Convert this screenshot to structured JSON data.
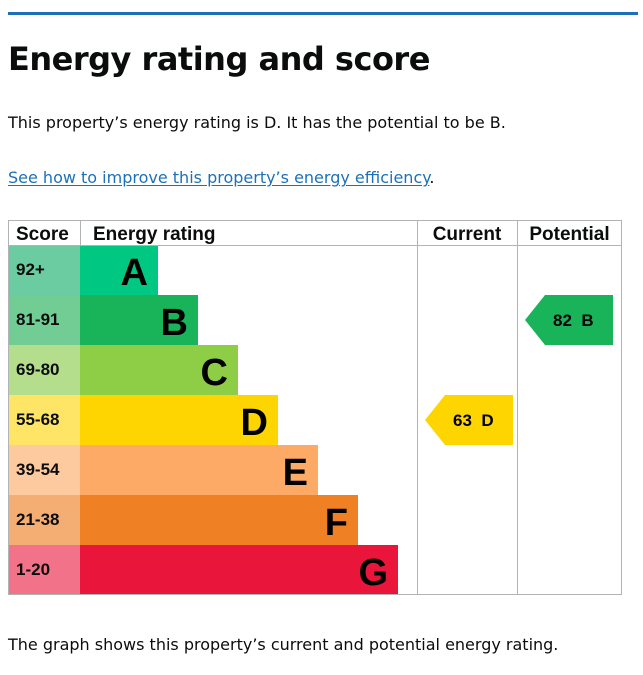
{
  "page": {
    "title": "Energy rating and score",
    "summary": "This property’s energy rating is D. It has the potential to be B.",
    "link_text": "See how to improve this property’s energy efficiency",
    "link_suffix": ".",
    "footer": "The graph shows this property’s current and potential energy rating."
  },
  "chart_data": {
    "type": "bar",
    "title": "",
    "headers": {
      "score": "Score",
      "rating": "Energy rating",
      "current": "Current",
      "potential": "Potential"
    },
    "categories": [
      "A",
      "B",
      "C",
      "D",
      "E",
      "F",
      "G"
    ],
    "bands": [
      {
        "letter": "A",
        "range": "92+",
        "color": "#008054",
        "bar_color": "#00c781",
        "score_bg": "#6bcca1"
      },
      {
        "letter": "B",
        "range": "81-91",
        "color": "#19b459",
        "bar_color": "#19b459",
        "score_bg": "#71cd93"
      },
      {
        "letter": "C",
        "range": "69-80",
        "color": "#8dce46",
        "bar_color": "#8dce46",
        "score_bg": "#b5de8c"
      },
      {
        "letter": "D",
        "range": "55-68",
        "color": "#ffd500",
        "bar_color": "#ffd500",
        "score_bg": "#ffe566"
      },
      {
        "letter": "E",
        "range": "39-54",
        "color": "#fcaa65",
        "bar_color": "#fcaa65",
        "score_bg": "#fdca9f"
      },
      {
        "letter": "F",
        "range": "21-38",
        "color": "#ef8023",
        "bar_color": "#ef8023",
        "score_bg": "#f4ad72"
      },
      {
        "letter": "G",
        "range": "1-20",
        "color": "#e9153b",
        "bar_color": "#e9153b",
        "score_bg": "#f27389"
      }
    ],
    "current": {
      "score": 63,
      "band": "D",
      "label": "63  D"
    },
    "potential": {
      "score": 82,
      "band": "B",
      "label": "82  B"
    }
  }
}
